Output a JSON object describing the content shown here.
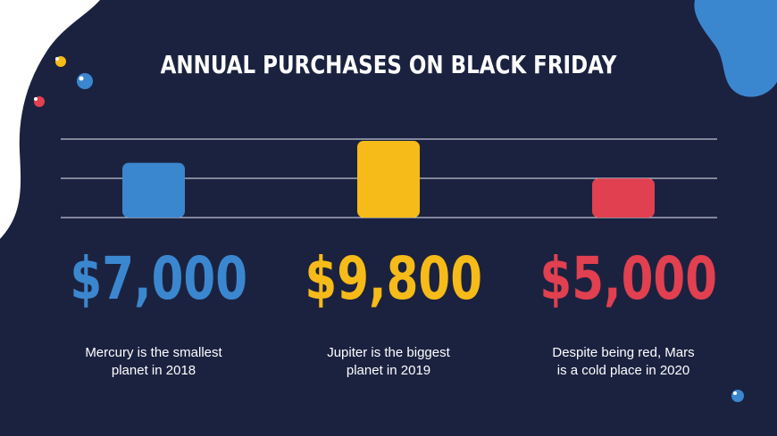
{
  "title": "ANNUAL PURCHASES ON BLACK FRIDAY",
  "colors": {
    "background": "#1b2240",
    "gridline": "#e9ecf3",
    "white": "#ffffff"
  },
  "chart_data": {
    "type": "bar",
    "categories": [
      "Mercury",
      "Jupiter",
      "Mars"
    ],
    "values": [
      7000,
      9800,
      5000
    ],
    "value_labels": [
      "$7,000",
      "$9,800",
      "$5,000"
    ],
    "bar_colors": [
      "#3b87cf",
      "#f6bb18",
      "#e0404f"
    ],
    "descriptions": [
      [
        "Mercury is the smallest",
        "planet in 2018"
      ],
      [
        "Jupiter is the biggest",
        "planet in 2019"
      ],
      [
        "Despite being red, Mars",
        "is a cold place in 2020"
      ]
    ],
    "title": "ANNUAL PURCHASES ON BLACK FRIDAY",
    "xlabel": "",
    "ylabel": "",
    "grid": true,
    "gridline_count": 3
  }
}
